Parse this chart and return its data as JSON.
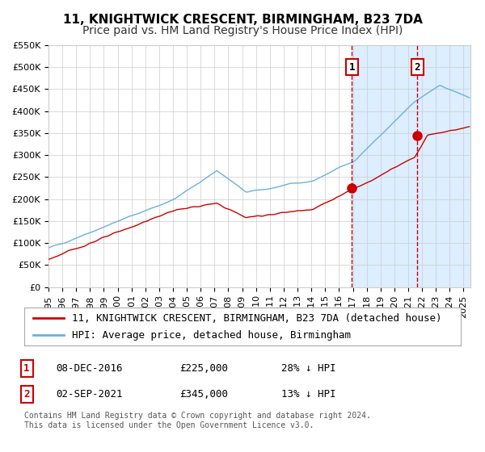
{
  "title": "11, KNIGHTWICK CRESCENT, BIRMINGHAM, B23 7DA",
  "subtitle": "Price paid vs. HM Land Registry's House Price Index (HPI)",
  "ylabel": "",
  "xlabel": "",
  "ylim": [
    0,
    550000
  ],
  "yticks": [
    0,
    50000,
    100000,
    150000,
    200000,
    250000,
    300000,
    350000,
    400000,
    450000,
    500000,
    550000
  ],
  "ytick_labels": [
    "£0",
    "£50K",
    "£100K",
    "£150K",
    "£200K",
    "£250K",
    "£300K",
    "£350K",
    "£400K",
    "£450K",
    "£500K",
    "£550K"
  ],
  "xmin_year": 1995,
  "xmax_year": 2025,
  "xtick_years": [
    1995,
    1996,
    1997,
    1998,
    1999,
    2000,
    2001,
    2002,
    2003,
    2004,
    2005,
    2006,
    2007,
    2008,
    2009,
    2010,
    2011,
    2012,
    2013,
    2014,
    2015,
    2016,
    2017,
    2018,
    2019,
    2020,
    2021,
    2022,
    2023,
    2024,
    2025
  ],
  "hpi_color": "#6ab0e0",
  "price_color": "#cc0000",
  "shaded_color": "#dceeff",
  "dashed_color": "#cc0000",
  "grid_color": "#cccccc",
  "background_color": "#ffffff",
  "marker1_date": 2016.92,
  "marker1_price": 225000,
  "marker1_label": "1",
  "marker2_date": 2021.67,
  "marker2_price": 345000,
  "marker2_label": "2",
  "annotation_box1": "1    08-DEC-2016    £225,000    28% ↓ HPI",
  "annotation_box2": "2    02-SEP-2021    £345,000    13% ↓ HPI",
  "legend_line1": "11, KNIGHTWICK CRESCENT, BIRMINGHAM, B23 7DA (detached house)",
  "legend_line2": "HPI: Average price, detached house, Birmingham",
  "footer": "Contains HM Land Registry data © Crown copyright and database right 2024.\nThis data is licensed under the Open Government Licence v3.0.",
  "title_fontsize": 11,
  "subtitle_fontsize": 10,
  "tick_fontsize": 8,
  "legend_fontsize": 9,
  "annotation_fontsize": 9,
  "footer_fontsize": 7
}
